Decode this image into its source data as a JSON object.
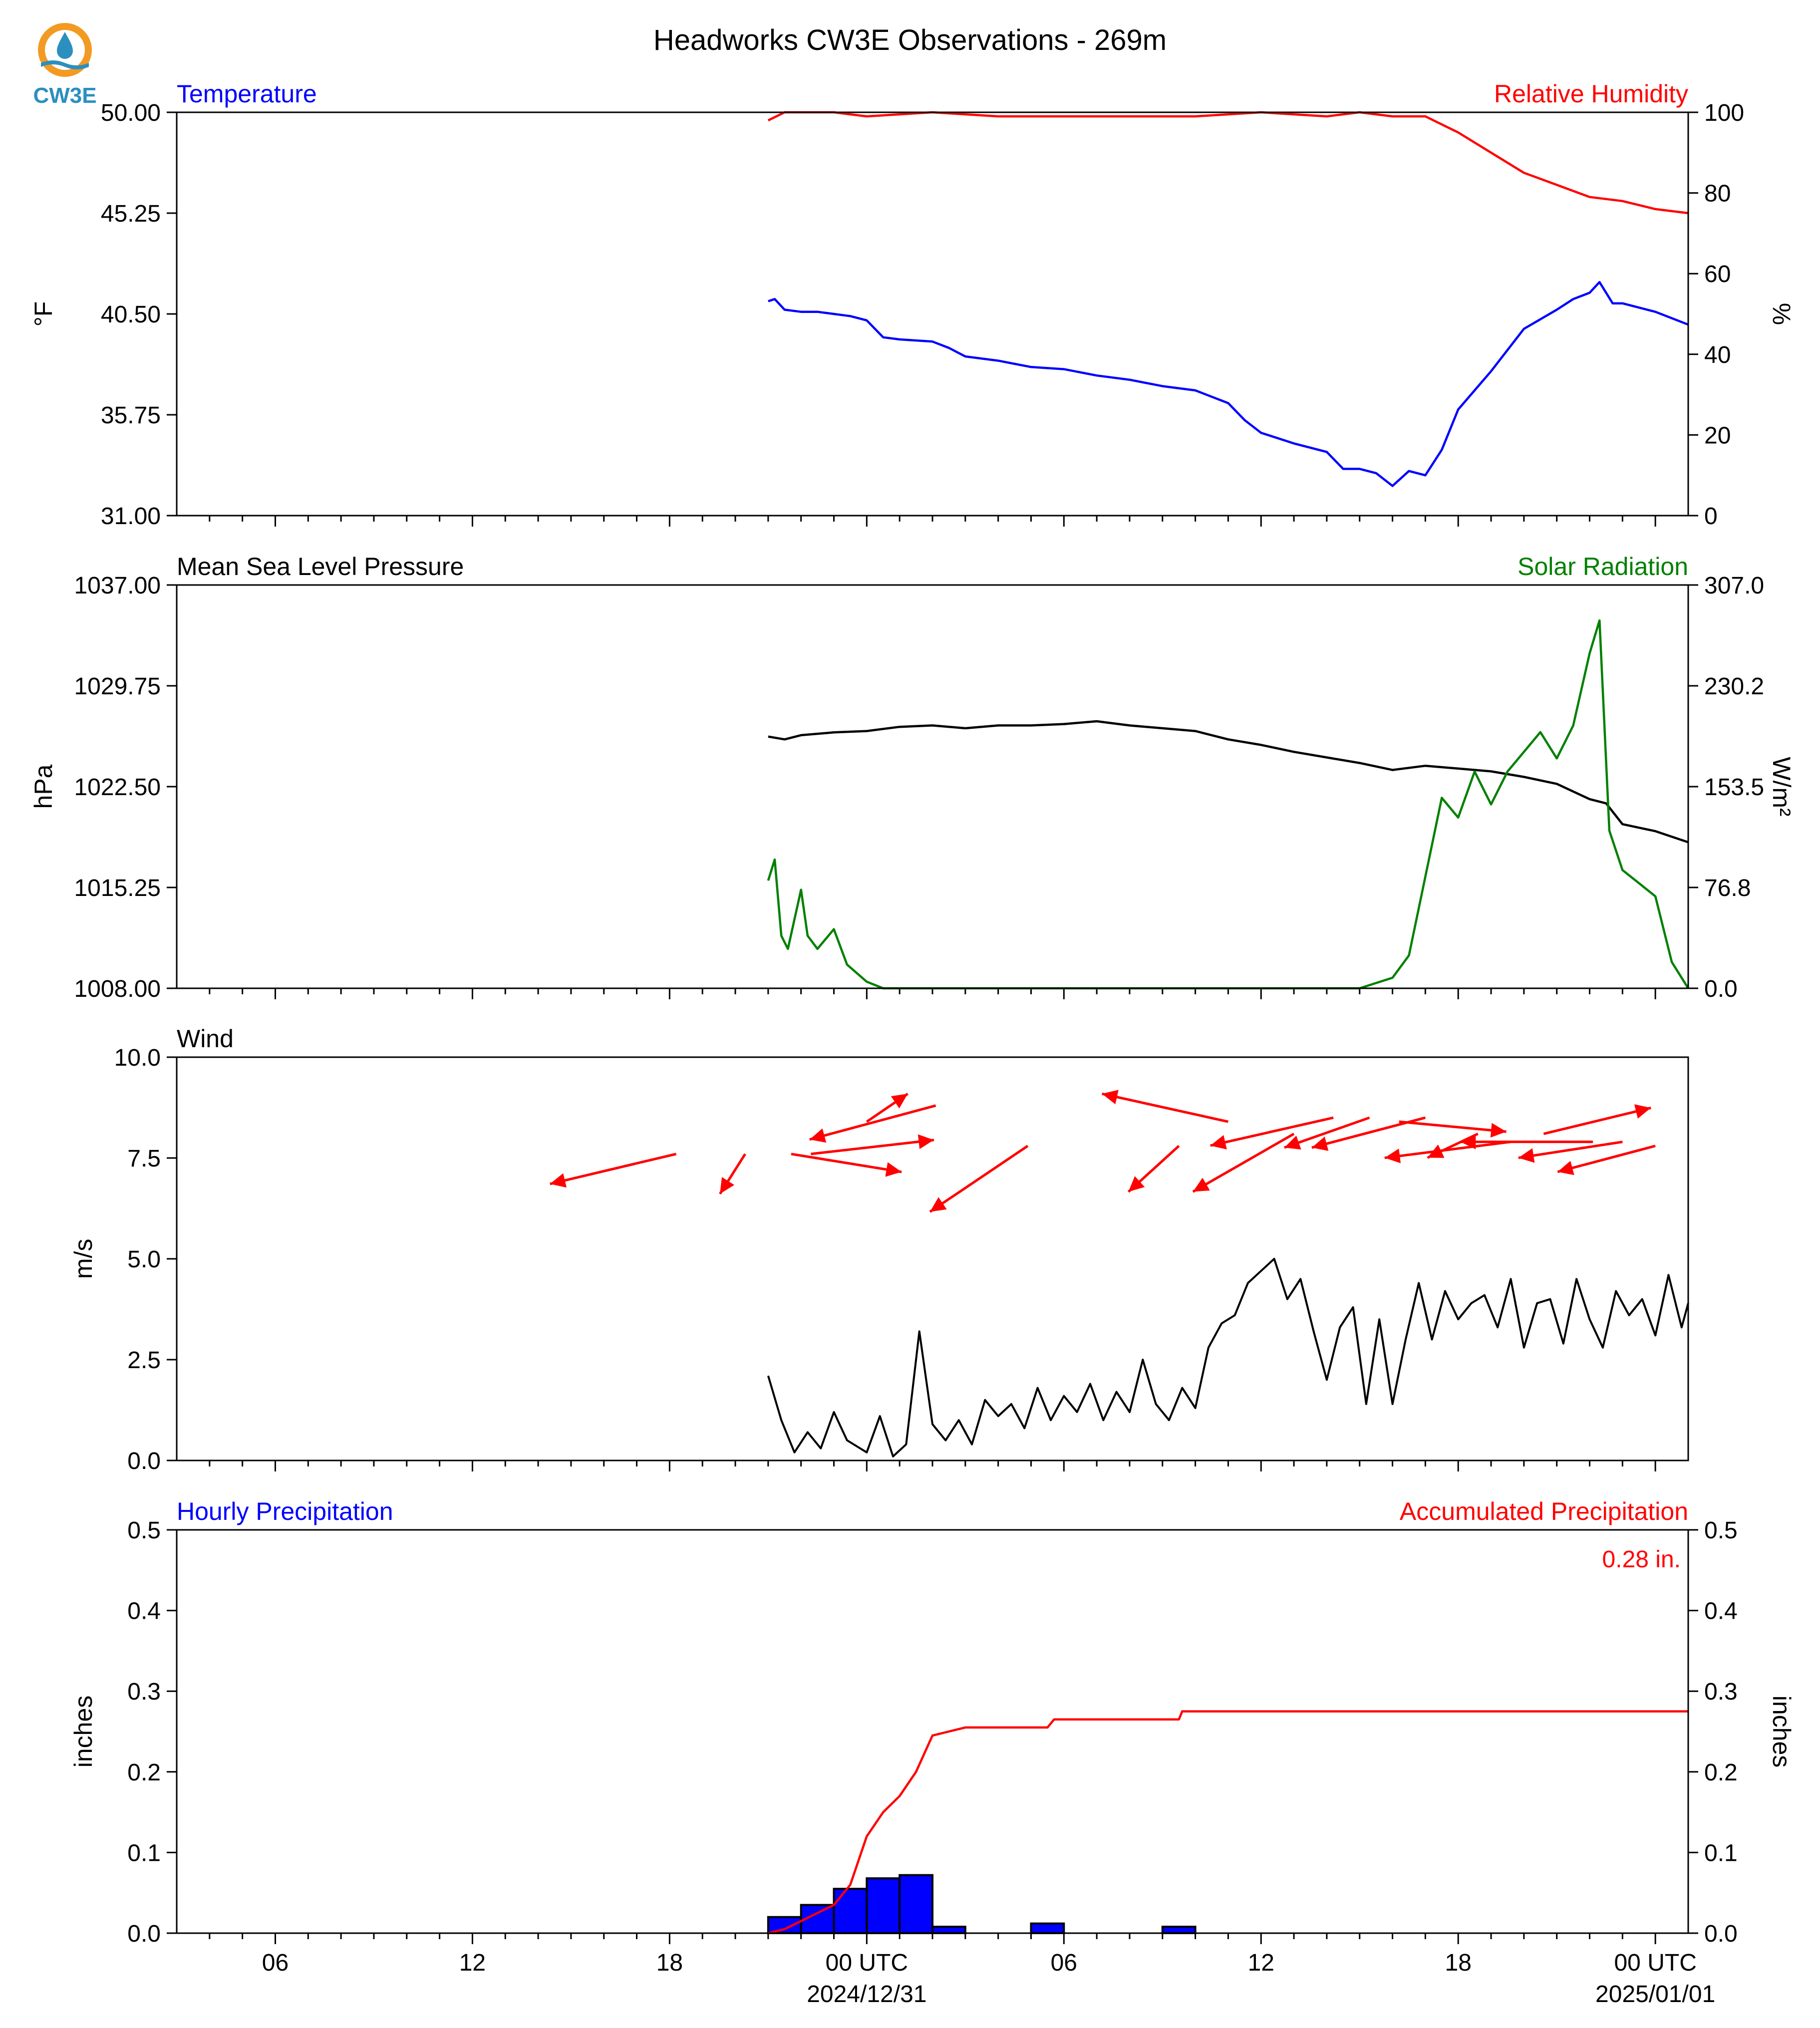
{
  "title": "Headworks CW3E Observations - 269m",
  "logo_text": "CW3E",
  "colors": {
    "temperature": "#0000ff",
    "humidity": "#ff0000",
    "pressure": "#000000",
    "solar": "#008000",
    "wind_speed": "#000000",
    "wind_arrow": "#ff0000",
    "hourly_bar": "#0000ff",
    "accum": "#ff0000",
    "logo_orange": "#f39a22",
    "logo_blue": "#2b8fc0"
  },
  "x_axis": {
    "range_hours": [
      -21,
      25
    ],
    "major_ticks": [
      {
        "h": -18,
        "label": "06"
      },
      {
        "h": -12,
        "label": "12"
      },
      {
        "h": -6,
        "label": "18"
      },
      {
        "h": 0,
        "label": "00 UTC",
        "date": "2024/12/31"
      },
      {
        "h": 6,
        "label": "06"
      },
      {
        "h": 12,
        "label": "12"
      },
      {
        "h": 18,
        "label": "18"
      },
      {
        "h": 24,
        "label": "00 UTC",
        "date": "2025/01/01"
      }
    ]
  },
  "chart_data": [
    {
      "type": "line",
      "panel": "temperature_humidity",
      "left_title": "Temperature",
      "right_title": "Relative Humidity",
      "ylabel": "°F",
      "ylabel2": "%",
      "ylim": [
        31.0,
        50.0
      ],
      "y_ticks": [
        "31.00",
        "35.75",
        "40.50",
        "45.25",
        "50.00"
      ],
      "ylim2": [
        0,
        100
      ],
      "y2_ticks": [
        "0",
        "20",
        "40",
        "60",
        "80",
        "100"
      ],
      "series": [
        {
          "axis": "left",
          "points": [
            [
              -3,
              41.1
            ],
            [
              -2.8,
              41.2
            ],
            [
              -2.5,
              40.7
            ],
            [
              -2,
              40.6
            ],
            [
              -1.5,
              40.6
            ],
            [
              -0.5,
              40.4
            ],
            [
              0,
              40.2
            ],
            [
              0.5,
              39.4
            ],
            [
              1,
              39.3
            ],
            [
              2,
              39.2
            ],
            [
              2.5,
              38.9
            ],
            [
              3,
              38.5
            ],
            [
              4,
              38.3
            ],
            [
              5,
              38.0
            ],
            [
              6,
              37.9
            ],
            [
              7,
              37.6
            ],
            [
              8,
              37.4
            ],
            [
              9,
              37.1
            ],
            [
              10,
              36.9
            ],
            [
              11,
              36.3
            ],
            [
              11.5,
              35.5
            ],
            [
              12,
              34.9
            ],
            [
              13,
              34.4
            ],
            [
              14,
              34.0
            ],
            [
              14.5,
              33.2
            ],
            [
              15,
              33.2
            ],
            [
              15.5,
              33.0
            ],
            [
              16,
              32.4
            ],
            [
              16.5,
              33.1
            ],
            [
              17,
              32.9
            ],
            [
              17.5,
              34.1
            ],
            [
              18,
              36.0
            ],
            [
              19,
              37.8
            ],
            [
              20,
              39.8
            ],
            [
              21,
              40.7
            ],
            [
              21.5,
              41.2
            ],
            [
              22,
              41.5
            ],
            [
              22.3,
              42.0
            ],
            [
              22.7,
              41.0
            ],
            [
              23,
              41.0
            ],
            [
              24,
              40.6
            ],
            [
              25,
              40.0
            ]
          ]
        },
        {
          "axis": "right",
          "points": [
            [
              -3,
              98
            ],
            [
              -2.5,
              100
            ],
            [
              -1,
              100
            ],
            [
              0,
              99
            ],
            [
              2,
              100
            ],
            [
              4,
              99
            ],
            [
              6,
              99
            ],
            [
              8,
              99
            ],
            [
              10,
              99
            ],
            [
              12,
              100
            ],
            [
              14,
              99
            ],
            [
              15,
              100
            ],
            [
              16,
              99
            ],
            [
              17,
              99
            ],
            [
              18,
              95
            ],
            [
              19,
              90
            ],
            [
              20,
              85
            ],
            [
              21,
              82
            ],
            [
              22,
              79
            ],
            [
              23,
              78
            ],
            [
              24,
              76
            ],
            [
              25,
              75
            ]
          ]
        }
      ]
    },
    {
      "type": "line",
      "panel": "pressure_solar",
      "left_title": "Mean Sea Level Pressure",
      "right_title": "Solar Radiation",
      "ylabel": "hPa",
      "ylabel2": "W/m²",
      "ylim": [
        1008.0,
        1037.0
      ],
      "y_ticks": [
        "1008.00",
        "1015.25",
        "1022.50",
        "1029.75",
        "1037.00"
      ],
      "ylim2": [
        0.0,
        307.0
      ],
      "y2_ticks": [
        "0.0",
        "76.8",
        "153.5",
        "230.2",
        "307.0"
      ],
      "series": [
        {
          "axis": "left",
          "points": [
            [
              -3,
              1026.1
            ],
            [
              -2.5,
              1025.9
            ],
            [
              -2,
              1026.2
            ],
            [
              -1,
              1026.4
            ],
            [
              0,
              1026.5
            ],
            [
              1,
              1026.8
            ],
            [
              2,
              1026.9
            ],
            [
              3,
              1026.7
            ],
            [
              4,
              1026.9
            ],
            [
              5,
              1026.9
            ],
            [
              6,
              1027.0
            ],
            [
              7,
              1027.2
            ],
            [
              8,
              1026.9
            ],
            [
              9,
              1026.7
            ],
            [
              10,
              1026.5
            ],
            [
              11,
              1025.9
            ],
            [
              12,
              1025.5
            ],
            [
              13,
              1025.0
            ],
            [
              14,
              1024.6
            ],
            [
              15,
              1024.2
            ],
            [
              16,
              1023.7
            ],
            [
              17,
              1024.0
            ],
            [
              18,
              1023.8
            ],
            [
              19,
              1023.6
            ],
            [
              20,
              1023.2
            ],
            [
              21,
              1022.7
            ],
            [
              22,
              1021.6
            ],
            [
              22.5,
              1021.3
            ],
            [
              23,
              1019.8
            ],
            [
              24,
              1019.3
            ],
            [
              25,
              1018.5
            ]
          ]
        },
        {
          "axis": "right",
          "points": [
            [
              -3,
              82
            ],
            [
              -2.8,
              98
            ],
            [
              -2.6,
              40
            ],
            [
              -2.4,
              30
            ],
            [
              -2,
              75
            ],
            [
              -1.8,
              40
            ],
            [
              -1.5,
              30
            ],
            [
              -1,
              45
            ],
            [
              -0.6,
              18
            ],
            [
              0,
              5
            ],
            [
              0.5,
              0
            ],
            [
              2,
              0
            ],
            [
              6,
              0
            ],
            [
              10,
              0
            ],
            [
              14,
              0
            ],
            [
              15,
              0
            ],
            [
              16,
              8
            ],
            [
              16.5,
              25
            ],
            [
              17,
              85
            ],
            [
              17.5,
              145
            ],
            [
              18,
              130
            ],
            [
              18.5,
              165
            ],
            [
              19,
              140
            ],
            [
              19.5,
              165
            ],
            [
              20,
              180
            ],
            [
              20.5,
              195
            ],
            [
              21,
              175
            ],
            [
              21.5,
              200
            ],
            [
              22,
              255
            ],
            [
              22.3,
              280
            ],
            [
              22.6,
              120
            ],
            [
              23,
              90
            ],
            [
              23.5,
              80
            ],
            [
              24,
              70
            ],
            [
              24.5,
              20
            ],
            [
              25,
              0
            ]
          ]
        }
      ]
    },
    {
      "type": "line",
      "panel": "wind",
      "left_title": "Wind",
      "ylabel": "m/s",
      "ylim": [
        0.0,
        10.0
      ],
      "y_ticks": [
        "0.0",
        "2.5",
        "5.0",
        "7.5",
        "10.0"
      ],
      "series": [
        {
          "name": "",
          "points": [
            [
              -3,
              2.1
            ],
            [
              -2.6,
              1.0
            ],
            [
              -2.2,
              0.2
            ],
            [
              -1.8,
              0.7
            ],
            [
              -1.4,
              0.3
            ],
            [
              -1,
              1.2
            ],
            [
              -0.6,
              0.5
            ],
            [
              0,
              0.2
            ],
            [
              0.4,
              1.1
            ],
            [
              0.8,
              0.1
            ],
            [
              1.2,
              0.4
            ],
            [
              1.6,
              3.2
            ],
            [
              2,
              0.9
            ],
            [
              2.4,
              0.5
            ],
            [
              2.8,
              1.0
            ],
            [
              3.2,
              0.4
            ],
            [
              3.6,
              1.5
            ],
            [
              4,
              1.1
            ],
            [
              4.4,
              1.4
            ],
            [
              4.8,
              0.8
            ],
            [
              5.2,
              1.8
            ],
            [
              5.6,
              1.0
            ],
            [
              6,
              1.6
            ],
            [
              6.4,
              1.2
            ],
            [
              6.8,
              1.9
            ],
            [
              7.2,
              1.0
            ],
            [
              7.6,
              1.7
            ],
            [
              8,
              1.2
            ],
            [
              8.4,
              2.5
            ],
            [
              8.8,
              1.4
            ],
            [
              9.2,
              1.0
            ],
            [
              9.6,
              1.8
            ],
            [
              10,
              1.3
            ],
            [
              10.4,
              2.8
            ],
            [
              10.8,
              3.4
            ],
            [
              11.2,
              3.6
            ],
            [
              11.6,
              4.4
            ],
            [
              12,
              4.7
            ],
            [
              12.4,
              5.0
            ],
            [
              12.8,
              4.0
            ],
            [
              13.2,
              4.5
            ],
            [
              13.6,
              3.2
            ],
            [
              14,
              2.0
            ],
            [
              14.4,
              3.3
            ],
            [
              14.8,
              3.8
            ],
            [
              15.2,
              1.4
            ],
            [
              15.6,
              3.5
            ],
            [
              16,
              1.4
            ],
            [
              16.4,
              3.0
            ],
            [
              16.8,
              4.4
            ],
            [
              17.2,
              3.0
            ],
            [
              17.6,
              4.2
            ],
            [
              18,
              3.5
            ],
            [
              18.4,
              3.9
            ],
            [
              18.8,
              4.1
            ],
            [
              19.2,
              3.3
            ],
            [
              19.6,
              4.5
            ],
            [
              20,
              2.8
            ],
            [
              20.4,
              3.9
            ],
            [
              20.8,
              4.0
            ],
            [
              21.2,
              2.9
            ],
            [
              21.6,
              4.5
            ],
            [
              22,
              3.5
            ],
            [
              22.4,
              2.8
            ],
            [
              22.8,
              4.2
            ],
            [
              23.2,
              3.6
            ],
            [
              23.6,
              4.0
            ],
            [
              24,
              3.1
            ],
            [
              24.4,
              4.6
            ],
            [
              24.8,
              3.3
            ],
            [
              25,
              3.9
            ]
          ]
        }
      ],
      "wind_arrows": [
        [
          -5.8,
          7.6,
          -4.0,
          -1.5
        ],
        [
          -3.7,
          7.6,
          -0.8,
          -2.0
        ],
        [
          -2.3,
          7.6,
          3.5,
          -0.9
        ],
        [
          -1.7,
          7.6,
          3.9,
          0.7
        ],
        [
          0,
          8.4,
          1.3,
          1.4
        ],
        [
          2.1,
          8.8,
          -4.0,
          -1.7
        ],
        [
          4.9,
          7.8,
          -3.1,
          -3.3
        ],
        [
          9.5,
          7.8,
          -1.6,
          -2.3
        ],
        [
          13,
          8.1,
          -3.2,
          -2.9
        ],
        [
          11,
          8.4,
          -4.0,
          1.4
        ],
        [
          14.2,
          8.5,
          -3.9,
          -1.4
        ],
        [
          18.6,
          8.1,
          -1.6,
          -1.2
        ],
        [
          20.6,
          8.1,
          3.4,
          1.3
        ],
        [
          24,
          7.8,
          -3.1,
          -1.3
        ],
        [
          19.6,
          7.9,
          -4.0,
          -0.8
        ],
        [
          16.2,
          8.4,
          3.4,
          -0.5
        ],
        [
          17,
          8.5,
          -3.6,
          -1.5
        ],
        [
          15.3,
          8.5,
          -2.7,
          -1.5
        ],
        [
          23,
          7.9,
          -3.3,
          -0.8
        ],
        [
          22.1,
          7.9,
          -4.2,
          0.0
        ]
      ]
    },
    {
      "type": "bar",
      "panel": "precipitation",
      "left_title": "Hourly Precipitation",
      "right_title": "Accumulated Precipitation",
      "ylabel": "inches",
      "ylabel2": "inches",
      "ylim": [
        0.0,
        0.5
      ],
      "y_ticks": [
        "0.0",
        "0.1",
        "0.2",
        "0.3",
        "0.4",
        "0.5"
      ],
      "ylim2": [
        0.0,
        0.5
      ],
      "y2_ticks": [
        "0.0",
        "0.1",
        "0.2",
        "0.3",
        "0.4",
        "0.5"
      ],
      "total_label": "0.28 in.",
      "bars": [
        [
          -3,
          0.02
        ],
        [
          -2,
          0.035
        ],
        [
          -1,
          0.055
        ],
        [
          0,
          0.068
        ],
        [
          1,
          0.072
        ],
        [
          2,
          0.008
        ],
        [
          5,
          0.012
        ],
        [
          9,
          0.008
        ]
      ],
      "accum_points": [
        [
          -3,
          0.0
        ],
        [
          -2.5,
          0.005
        ],
        [
          -2,
          0.015
        ],
        [
          -1.5,
          0.025
        ],
        [
          -1,
          0.035
        ],
        [
          -0.5,
          0.06
        ],
        [
          0,
          0.12
        ],
        [
          0.5,
          0.15
        ],
        [
          1,
          0.17
        ],
        [
          1.5,
          0.2
        ],
        [
          2,
          0.245
        ],
        [
          2.5,
          0.25
        ],
        [
          3,
          0.255
        ],
        [
          5.5,
          0.255
        ],
        [
          5.7,
          0.265
        ],
        [
          9.5,
          0.265
        ],
        [
          9.6,
          0.275
        ],
        [
          25,
          0.275
        ]
      ]
    }
  ]
}
